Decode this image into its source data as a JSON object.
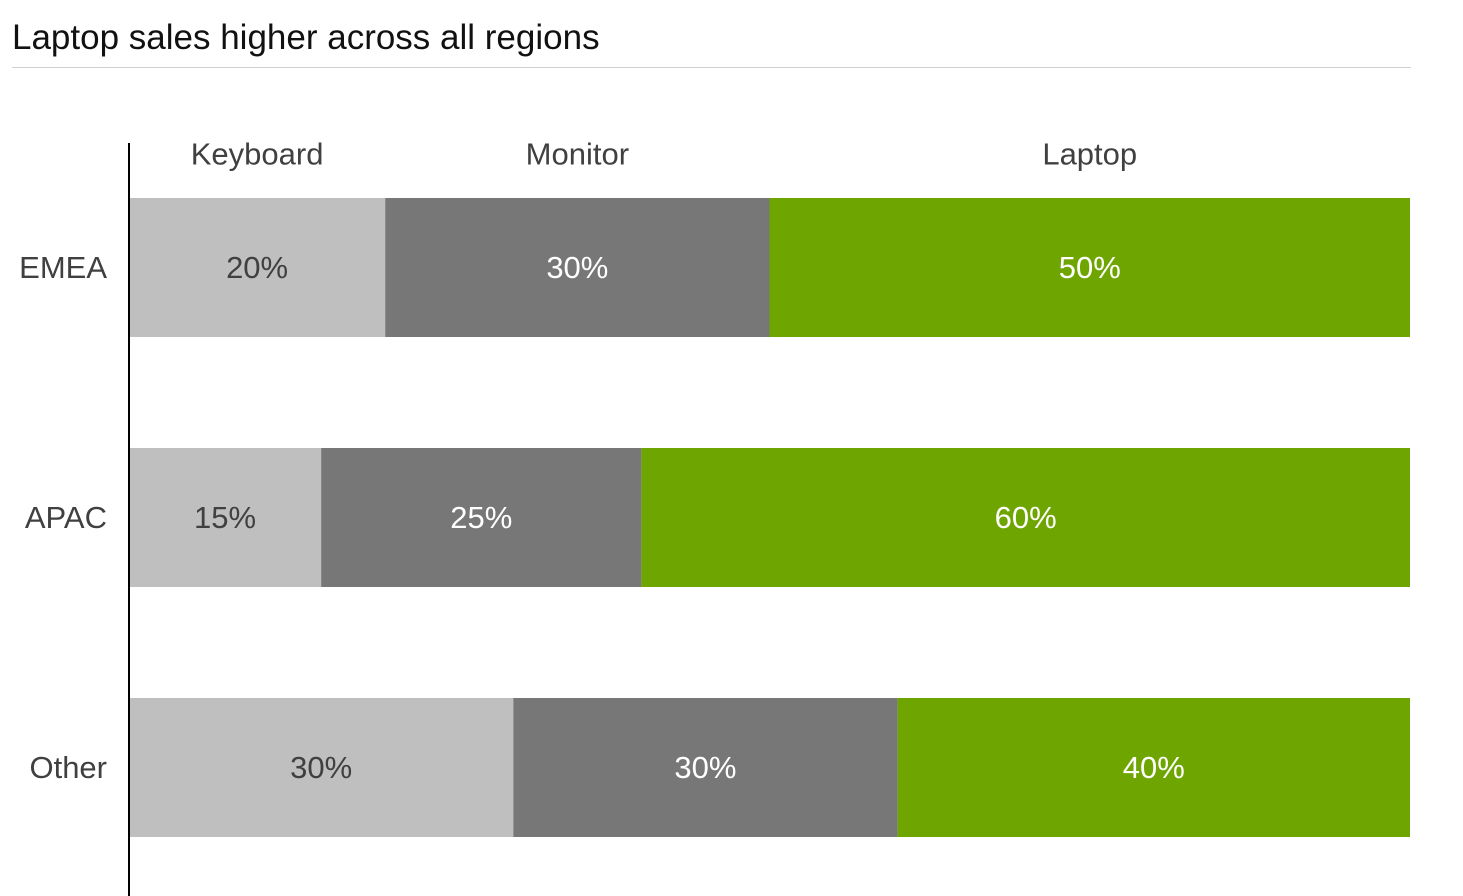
{
  "title": "Laptop sales higher across all regions",
  "chart_data": {
    "type": "bar",
    "orientation": "horizontal",
    "stacked": true,
    "percent_stacked": true,
    "title": "Laptop sales higher across all regions",
    "categories": [
      "EMEA",
      "APAC",
      "Other"
    ],
    "series": [
      {
        "name": "Keyboard",
        "values": [
          20,
          15,
          30
        ],
        "labels": [
          "20%",
          "15%",
          "30%"
        ],
        "color": "#bfbfbf",
        "label_color": "#404040"
      },
      {
        "name": "Monitor",
        "values": [
          30,
          25,
          30
        ],
        "labels": [
          "30%",
          "25%",
          "30%"
        ],
        "color": "#777777",
        "label_color": "#ffffff"
      },
      {
        "name": "Laptop",
        "values": [
          50,
          60,
          40
        ],
        "labels": [
          "50%",
          "60%",
          "40%"
        ],
        "color": "#6ea500",
        "label_color": "#ffffff"
      }
    ],
    "xlim": [
      0,
      100
    ],
    "grid": false,
    "legend": "top, above first bar segments"
  }
}
